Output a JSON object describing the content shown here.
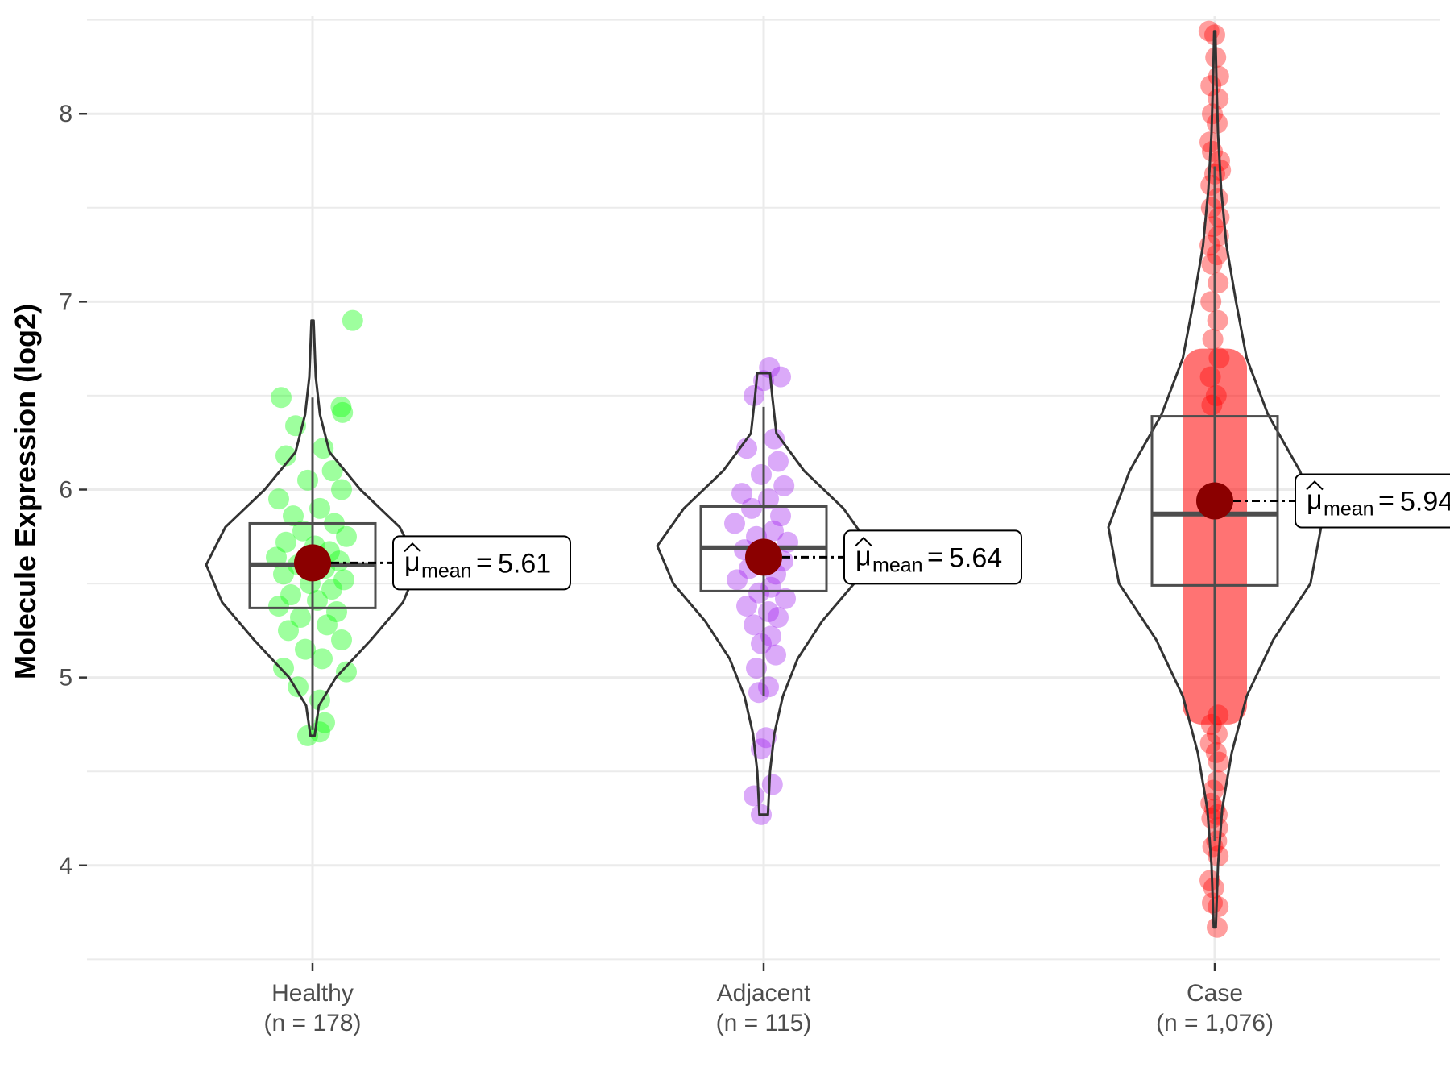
{
  "chart_data": {
    "type": "violin-box-jitter",
    "ylabel": "Molecule Expression (log2)",
    "xlabel": "",
    "ylim": [
      3.48,
      8.52
    ],
    "yticks": [
      4,
      5,
      6,
      7,
      8
    ],
    "grid": true,
    "mean_symbol": "μ",
    "mean_subscript": "mean",
    "groups": [
      {
        "name": "Healthy",
        "n_label": "(n = 178)",
        "n": 178,
        "color": "#00ff00",
        "mean": 5.61,
        "mean_label": "5.61",
        "median": 5.6,
        "q1": 5.37,
        "q3": 5.82,
        "whisker_low": 4.72,
        "whisker_high": 6.49,
        "min": 4.69,
        "max": 6.9,
        "violin": [
          [
            4.69,
            0.02
          ],
          [
            4.85,
            0.06
          ],
          [
            5.0,
            0.22
          ],
          [
            5.2,
            0.55
          ],
          [
            5.4,
            0.85
          ],
          [
            5.6,
            1.0
          ],
          [
            5.8,
            0.82
          ],
          [
            6.0,
            0.45
          ],
          [
            6.2,
            0.16
          ],
          [
            6.4,
            0.07
          ],
          [
            6.6,
            0.03
          ],
          [
            6.9,
            0.01
          ]
        ],
        "points": [
          [
            6.9,
            0.83
          ],
          [
            6.49,
            -0.65
          ],
          [
            6.44,
            0.59
          ],
          [
            6.41,
            0.62
          ],
          [
            6.34,
            -0.35
          ],
          [
            6.22,
            0.22
          ],
          [
            6.18,
            -0.55
          ],
          [
            6.1,
            0.41
          ],
          [
            6.05,
            -0.1
          ],
          [
            6.0,
            0.6
          ],
          [
            5.95,
            -0.7
          ],
          [
            5.9,
            0.15
          ],
          [
            5.86,
            -0.4
          ],
          [
            5.82,
            0.45
          ],
          [
            5.78,
            -0.2
          ],
          [
            5.75,
            0.7
          ],
          [
            5.72,
            -0.55
          ],
          [
            5.7,
            0.05
          ],
          [
            5.67,
            0.35
          ],
          [
            5.64,
            -0.75
          ],
          [
            5.62,
            0.55
          ],
          [
            5.6,
            -0.3
          ],
          [
            5.58,
            0.25
          ],
          [
            5.55,
            -0.6
          ],
          [
            5.52,
            0.65
          ],
          [
            5.5,
            -0.05
          ],
          [
            5.47,
            0.4
          ],
          [
            5.44,
            -0.45
          ],
          [
            5.41,
            0.1
          ],
          [
            5.38,
            -0.7
          ],
          [
            5.35,
            0.5
          ],
          [
            5.32,
            -0.25
          ],
          [
            5.28,
            0.3
          ],
          [
            5.25,
            -0.5
          ],
          [
            5.2,
            0.6
          ],
          [
            5.15,
            -0.15
          ],
          [
            5.1,
            0.2
          ],
          [
            5.05,
            -0.6
          ],
          [
            5.03,
            0.7
          ],
          [
            4.95,
            -0.3
          ],
          [
            4.88,
            0.15
          ],
          [
            4.76,
            0.25
          ],
          [
            4.71,
            0.15
          ],
          [
            4.69,
            -0.1
          ]
        ]
      },
      {
        "name": "Adjacent",
        "n_label": "(n = 115)",
        "n": 115,
        "color": "#a020f0",
        "mean": 5.64,
        "mean_label": "5.64",
        "median": 5.69,
        "q1": 5.46,
        "q3": 5.91,
        "whisker_low": 4.9,
        "whisker_high": 6.44,
        "min": 4.27,
        "max": 6.65,
        "violin": [
          [
            4.27,
            0.04
          ],
          [
            4.5,
            0.06
          ],
          [
            4.7,
            0.1
          ],
          [
            4.9,
            0.18
          ],
          [
            5.1,
            0.32
          ],
          [
            5.3,
            0.55
          ],
          [
            5.5,
            0.85
          ],
          [
            5.7,
            1.0
          ],
          [
            5.9,
            0.75
          ],
          [
            6.1,
            0.38
          ],
          [
            6.3,
            0.12
          ],
          [
            6.5,
            0.08
          ],
          [
            6.62,
            0.06
          ]
        ],
        "points": [
          [
            6.65,
            0.12
          ],
          [
            6.6,
            0.35
          ],
          [
            6.58,
            0.0
          ],
          [
            6.5,
            -0.2
          ],
          [
            6.27,
            0.22
          ],
          [
            6.22,
            -0.35
          ],
          [
            6.15,
            0.3
          ],
          [
            6.08,
            -0.05
          ],
          [
            6.02,
            0.42
          ],
          [
            5.98,
            -0.45
          ],
          [
            5.95,
            0.1
          ],
          [
            5.9,
            -0.25
          ],
          [
            5.86,
            0.35
          ],
          [
            5.82,
            -0.6
          ],
          [
            5.78,
            0.2
          ],
          [
            5.75,
            -0.15
          ],
          [
            5.72,
            0.5
          ],
          [
            5.68,
            -0.4
          ],
          [
            5.65,
            0.05
          ],
          [
            5.62,
            0.4
          ],
          [
            5.58,
            -0.3
          ],
          [
            5.55,
            0.25
          ],
          [
            5.52,
            -0.55
          ],
          [
            5.48,
            0.15
          ],
          [
            5.45,
            -0.1
          ],
          [
            5.42,
            0.45
          ],
          [
            5.38,
            -0.35
          ],
          [
            5.35,
            0.1
          ],
          [
            5.32,
            0.3
          ],
          [
            5.28,
            -0.2
          ],
          [
            5.22,
            0.15
          ],
          [
            5.18,
            -0.05
          ],
          [
            5.12,
            0.25
          ],
          [
            5.05,
            -0.15
          ],
          [
            4.95,
            0.1
          ],
          [
            4.92,
            -0.1
          ],
          [
            4.68,
            0.05
          ],
          [
            4.62,
            -0.05
          ],
          [
            4.43,
            0.18
          ],
          [
            4.37,
            -0.2
          ],
          [
            4.27,
            -0.05
          ]
        ]
      },
      {
        "name": "Case",
        "n_label": "(n = 1,076)",
        "n": 1076,
        "color": "#ff0000",
        "mean": 5.94,
        "mean_label": "5.94",
        "median": 5.87,
        "q1": 5.49,
        "q3": 6.39,
        "whisker_low": 4.13,
        "whisker_high": 7.72,
        "min": 3.67,
        "max": 8.44,
        "violin": [
          [
            3.67,
            0.01
          ],
          [
            4.0,
            0.03
          ],
          [
            4.3,
            0.07
          ],
          [
            4.6,
            0.16
          ],
          [
            4.9,
            0.3
          ],
          [
            5.2,
            0.55
          ],
          [
            5.5,
            0.9
          ],
          [
            5.8,
            1.0
          ],
          [
            6.1,
            0.8
          ],
          [
            6.4,
            0.5
          ],
          [
            6.7,
            0.3
          ],
          [
            7.0,
            0.2
          ],
          [
            7.3,
            0.11
          ],
          [
            7.6,
            0.06
          ],
          [
            7.9,
            0.03
          ],
          [
            8.2,
            0.015
          ],
          [
            8.44,
            0.005
          ]
        ],
        "points": [
          [
            8.44,
            -0.12
          ],
          [
            8.42,
            0.0
          ],
          [
            8.3,
            0.02
          ],
          [
            8.2,
            0.08
          ],
          [
            8.15,
            -0.08
          ],
          [
            8.08,
            0.07
          ],
          [
            8.0,
            -0.05
          ],
          [
            7.95,
            0.05
          ],
          [
            7.85,
            -0.1
          ],
          [
            7.8,
            -0.05
          ],
          [
            7.75,
            0.1
          ],
          [
            7.7,
            0.12
          ],
          [
            7.68,
            0.0
          ],
          [
            7.62,
            -0.08
          ],
          [
            7.55,
            0.06
          ],
          [
            7.5,
            -0.07
          ],
          [
            7.45,
            0.09
          ],
          [
            7.4,
            -0.03
          ],
          [
            7.35,
            0.08
          ],
          [
            7.3,
            -0.1
          ],
          [
            7.25,
            0.05
          ],
          [
            7.2,
            -0.06
          ],
          [
            7.1,
            0.07
          ],
          [
            7.0,
            -0.08
          ],
          [
            6.9,
            0.06
          ],
          [
            6.8,
            -0.04
          ],
          [
            6.7,
            0.09
          ],
          [
            6.6,
            -0.09
          ],
          [
            6.5,
            0.03
          ],
          [
            6.45,
            -0.06
          ],
          [
            4.8,
            0.07
          ],
          [
            4.75,
            -0.07
          ],
          [
            4.7,
            0.05
          ],
          [
            4.65,
            -0.09
          ],
          [
            4.6,
            0.03
          ],
          [
            4.55,
            0.08
          ],
          [
            4.45,
            0.06
          ],
          [
            4.4,
            -0.03
          ],
          [
            4.33,
            -0.08
          ],
          [
            4.3,
            0.0
          ],
          [
            4.27,
            0.05
          ],
          [
            4.25,
            -0.06
          ],
          [
            4.2,
            0.06
          ],
          [
            4.13,
            0.04
          ],
          [
            4.1,
            -0.04
          ],
          [
            4.05,
            0.07
          ],
          [
            3.92,
            -0.1
          ],
          [
            3.88,
            -0.02
          ],
          [
            3.8,
            -0.05
          ],
          [
            3.78,
            0.07
          ],
          [
            3.67,
            0.05
          ]
        ]
      }
    ]
  }
}
